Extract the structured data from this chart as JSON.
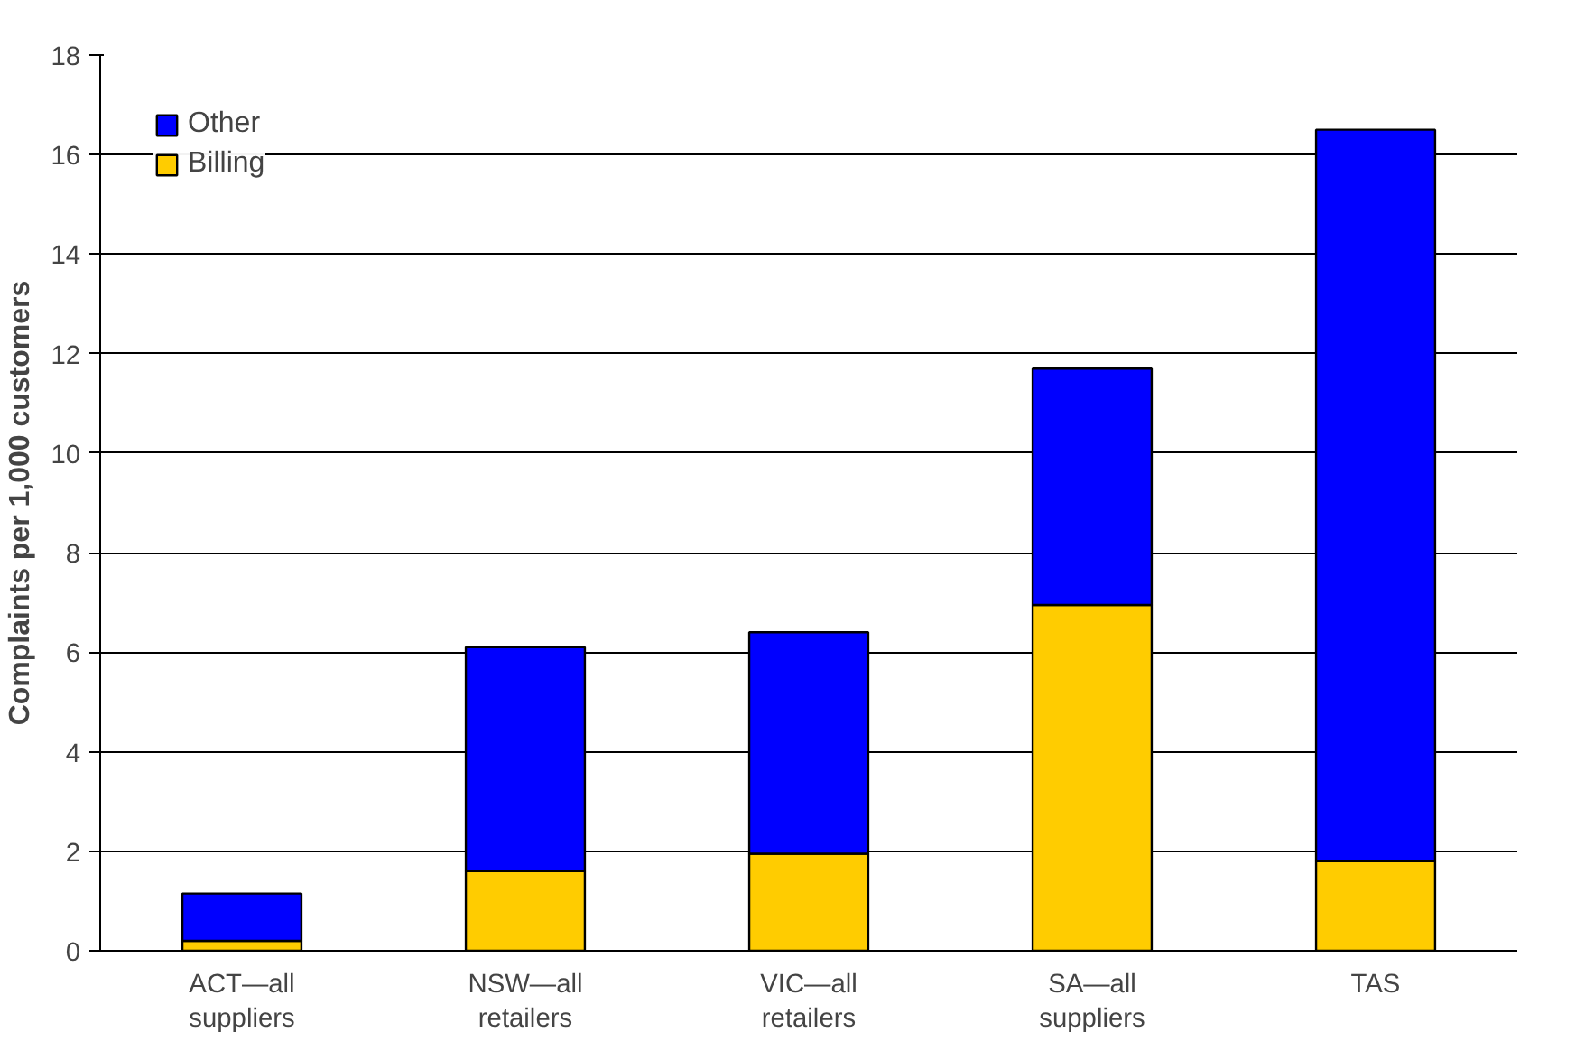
{
  "chart_data": {
    "type": "bar",
    "stacked": true,
    "ylabel": "Complaints per 1,000 customers",
    "categories": [
      "ACT—all suppliers",
      "NSW—all retailers",
      "VIC—all retailers",
      "SA—all suppliers",
      "TAS"
    ],
    "series": [
      {
        "name": "Billing",
        "color": "#ffcc00",
        "values": [
          0.2,
          1.6,
          1.95,
          6.95,
          1.8
        ]
      },
      {
        "name": "Other",
        "color": "#0000ff",
        "values": [
          0.95,
          4.5,
          4.45,
          4.75,
          14.7
        ]
      }
    ],
    "ylim": [
      0,
      18
    ],
    "yticks": [
      0,
      2,
      4,
      6,
      8,
      10,
      12,
      14,
      16,
      18
    ],
    "grid": "y",
    "legend": "top left"
  }
}
